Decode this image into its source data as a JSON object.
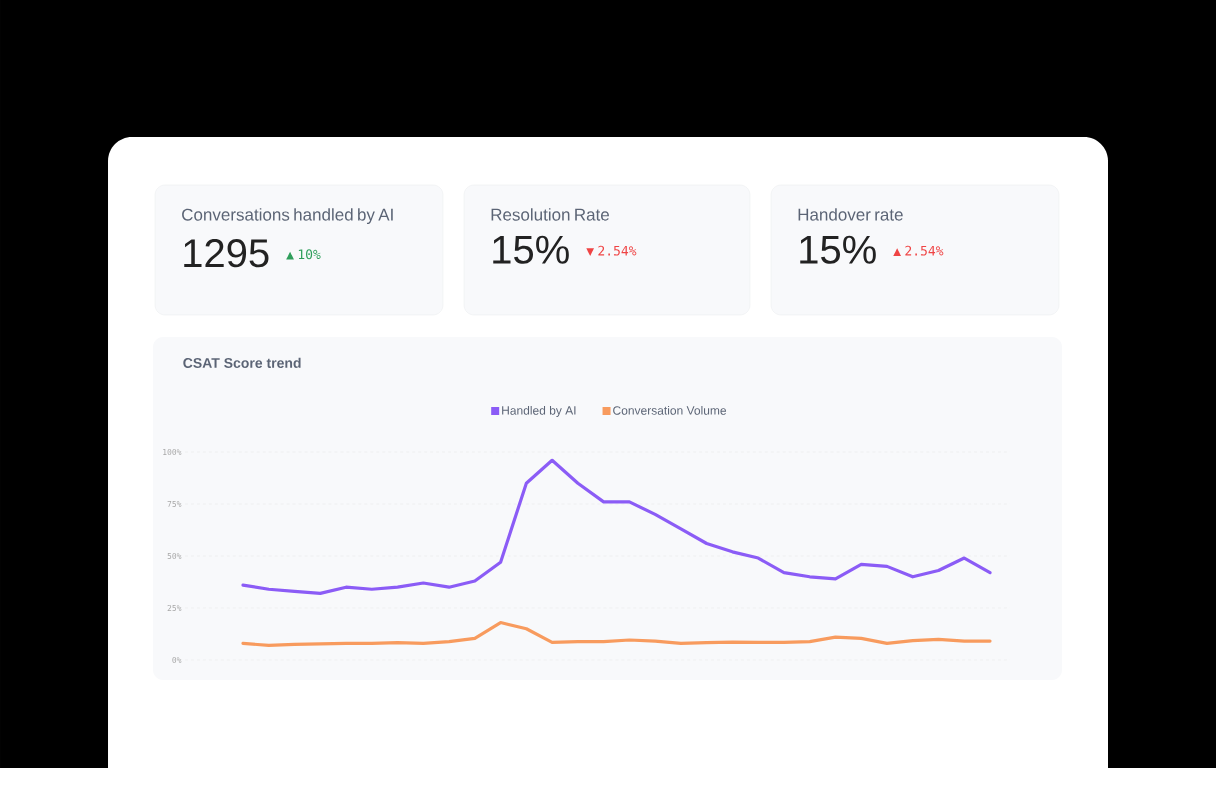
{
  "chart_data": [
    {
      "type": "other",
      "title": "Conversations handled by AI",
      "annotations": [
        "1295",
        "▲ 10%"
      ],
      "color": "#2f9e5b"
    },
    {
      "type": "other",
      "title": "Resolution Rate",
      "annotations": [
        "15%",
        "▼ 2.54%"
      ],
      "color": "#ef4444"
    },
    {
      "type": "other",
      "title": "Handover rate",
      "annotations": [
        "15%",
        "▲ 2.54%"
      ],
      "color": "#ef4444"
    },
    {
      "type": "line",
      "title": "CSAT Score trend",
      "categories": [
        null,
        null,
        null,
        null,
        null,
        null,
        null,
        null,
        null,
        null,
        null,
        null,
        null,
        null,
        null,
        null,
        null,
        null,
        null,
        null,
        null,
        null,
        null,
        null,
        null,
        null,
        null,
        null,
        null,
        null
      ],
      "series": [
        {
          "name": "Handled by AI",
          "color": "#8b5cf6",
          "values": [
            36,
            34,
            33,
            32,
            35,
            34,
            35,
            37,
            35,
            38,
            47,
            85,
            96,
            85,
            76,
            76,
            70,
            63,
            56,
            52,
            49,
            42,
            40,
            39,
            46,
            45,
            40,
            43,
            49,
            42
          ]
        },
        {
          "name": "Conversation Volume",
          "color": "#f89b5e",
          "values": [
            8,
            7,
            7.5,
            7.7,
            8,
            8,
            8.3,
            8,
            8.8,
            10.4,
            18,
            15,
            8.5,
            8.8,
            8.8,
            9.6,
            9.1,
            8,
            8.3,
            8.6,
            8.5,
            8.5,
            8.8,
            11,
            10.4,
            8,
            9.3,
            9.9,
            9.1,
            9.1
          ]
        }
      ],
      "ylim": [
        0,
        100
      ],
      "yticks": [
        {
          "value": 0,
          "label": "0%"
        },
        {
          "value": 25,
          "label": "25%"
        },
        {
          "value": 50,
          "label": "50%"
        },
        {
          "value": 75,
          "label": "75%"
        },
        {
          "value": 100,
          "label": "100%"
        }
      ],
      "grid": "y",
      "legend": "top",
      "marker": "none",
      "line_style": "solid"
    }
  ]
}
